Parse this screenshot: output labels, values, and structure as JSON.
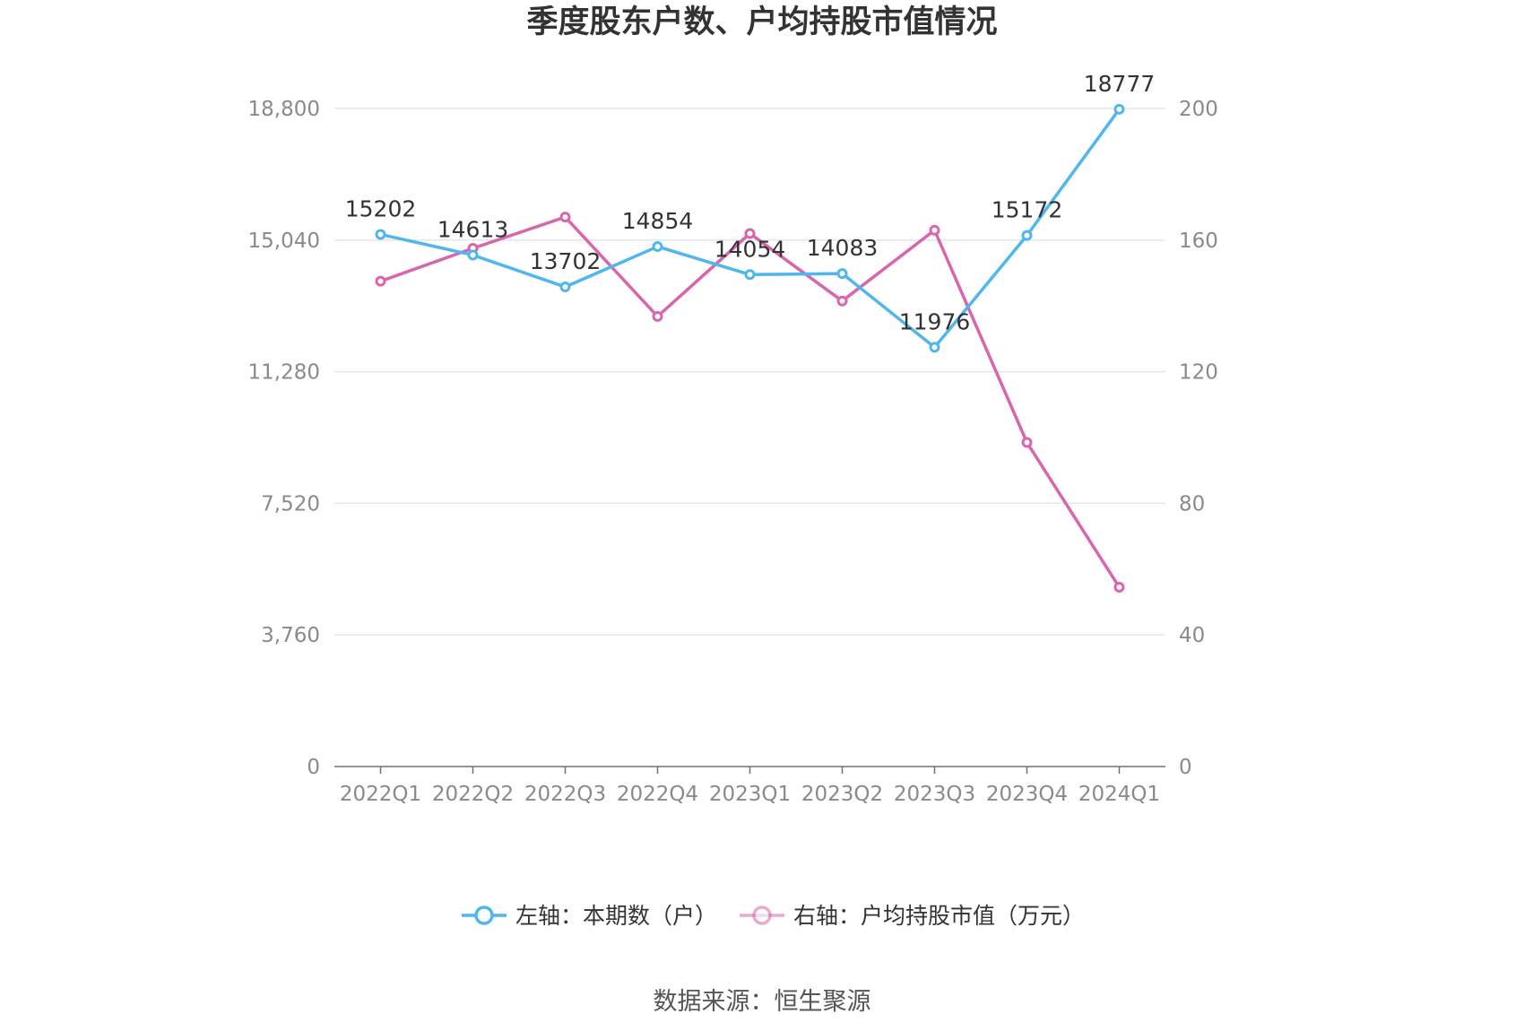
{
  "chart_data": {
    "type": "line",
    "title": "季度股东户数、户均持股市值情况",
    "categories": [
      "2022Q1",
      "2022Q2",
      "2022Q3",
      "2022Q4",
      "2023Q1",
      "2023Q2",
      "2023Q3",
      "2023Q4",
      "2024Q1"
    ],
    "y_left": {
      "ylim": [
        0,
        18800
      ],
      "ticks": [
        "0",
        "3,760",
        "7,520",
        "11,280",
        "15,040",
        "18,800"
      ]
    },
    "y_right": {
      "ylim": [
        0,
        200
      ],
      "ticks": [
        "0",
        "40",
        "80",
        "120",
        "160",
        "200"
      ]
    },
    "series": [
      {
        "name": "左轴：本期数（户）",
        "axis": "left",
        "color": "#4fb7ee",
        "values": [
          15202,
          14613,
          13702,
          14854,
          14054,
          14083,
          11976,
          15172,
          18777
        ],
        "labels": [
          "15202",
          "14613",
          "13702",
          "14854",
          "14054",
          "14083",
          "11976",
          "15172",
          "18777"
        ]
      },
      {
        "name": "右轴：户均持股市值（万元）",
        "axis": "right",
        "color": "#d966ad",
        "values": [
          147.5,
          157.5,
          167.0,
          136.8,
          162.0,
          141.5,
          163.0,
          98.5,
          54.5
        ]
      }
    ],
    "grid": true,
    "legend_position": "bottom-center"
  },
  "footer": {
    "source": "数据来源：恒生聚源"
  }
}
